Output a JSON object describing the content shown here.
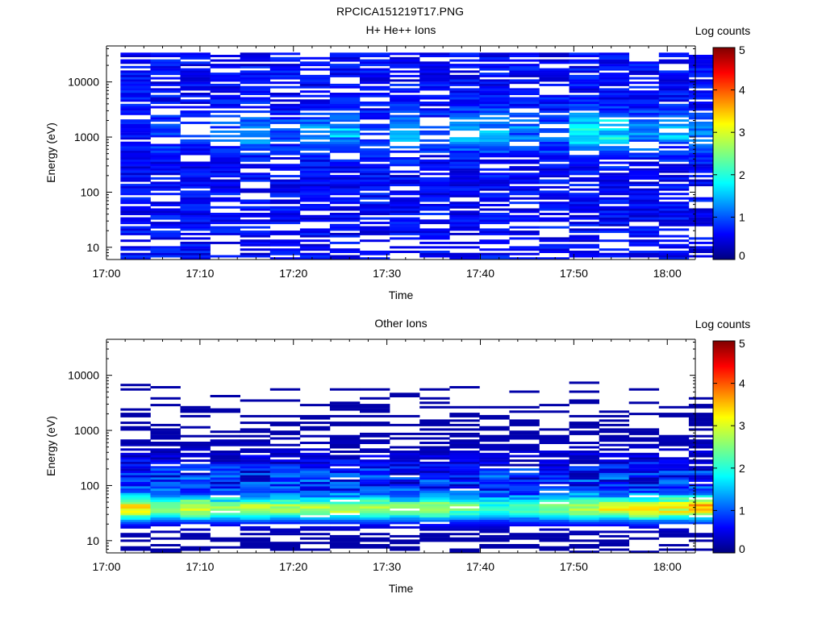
{
  "figure_title": "RPCICA151219T17.PNG",
  "chart_data": [
    {
      "type": "heatmap",
      "title": "H+ He++ Ions",
      "xlabel": "Time",
      "ylabel": "Energy (eV)",
      "x_tick_labels": [
        "17:00",
        "17:10",
        "17:20",
        "17:30",
        "17:40",
        "17:50",
        "18:00"
      ],
      "y_tick_labels": [
        "10",
        "100",
        "1000",
        "10000"
      ],
      "y_scale": "log",
      "ylim": [
        6,
        45000
      ],
      "xlim_minutes": [
        0,
        63
      ],
      "colorbar": {
        "label": "Log counts",
        "range": [
          0,
          5
        ],
        "tick_labels": [
          "0",
          "1",
          "2",
          "3",
          "4",
          "5"
        ]
      },
      "time_bins": [
        "17:01.5",
        "17:04.7",
        "17:07.9",
        "17:11.1",
        "17:14.3",
        "17:17.5",
        "17:20.7",
        "17:23.9",
        "17:27.1",
        "17:30.3",
        "17:33.5",
        "17:36.7",
        "17:39.9",
        "17:43.1",
        "17:46.3",
        "17:49.5",
        "17:52.7",
        "17:55.9",
        "17:59.1",
        "18:02.3"
      ],
      "profile_description": "broad low-count background across all energies, moderate enhancement 600-2500 eV",
      "profile_peak_log_counts": [
        0.7,
        1.0,
        0.8,
        1.2,
        1.6,
        1.0,
        1.4,
        1.7,
        0.9,
        1.6,
        1.0,
        1.8,
        1.7,
        1.4,
        1.2,
        2.3,
        2.1,
        1.5,
        1.7,
        1.5
      ]
    },
    {
      "type": "heatmap",
      "title": "Other Ions",
      "xlabel": "Time",
      "ylabel": "Energy (eV)",
      "x_tick_labels": [
        "17:00",
        "17:10",
        "17:20",
        "17:30",
        "17:40",
        "17:50",
        "18:00"
      ],
      "y_tick_labels": [
        "10",
        "100",
        "1000",
        "10000"
      ],
      "y_scale": "log",
      "ylim": [
        6,
        45000
      ],
      "xlim_minutes": [
        0,
        63
      ],
      "colorbar": {
        "label": "Log counts",
        "range": [
          0,
          5
        ],
        "tick_labels": [
          "0",
          "1",
          "2",
          "3",
          "4",
          "5"
        ]
      },
      "time_bins": [
        "17:01.5",
        "17:04.7",
        "17:07.9",
        "17:11.1",
        "17:14.3",
        "17:17.5",
        "17:20.7",
        "17:23.9",
        "17:27.1",
        "17:30.3",
        "17:33.5",
        "17:36.7",
        "17:39.9",
        "17:43.1",
        "17:46.3",
        "17:49.5",
        "17:52.7",
        "17:55.9",
        "17:59.1",
        "18:02.3"
      ],
      "profile_description": "intense band near 25-60 eV, sparse counts at high energies",
      "profile_peak_log_counts": [
        3.5,
        2.6,
        3.1,
        2.8,
        2.9,
        2.8,
        2.9,
        2.9,
        2.9,
        2.7,
        3.0,
        2.6,
        2.2,
        2.4,
        2.8,
        3.2,
        3.4,
        3.6,
        3.4,
        3.7
      ]
    }
  ]
}
